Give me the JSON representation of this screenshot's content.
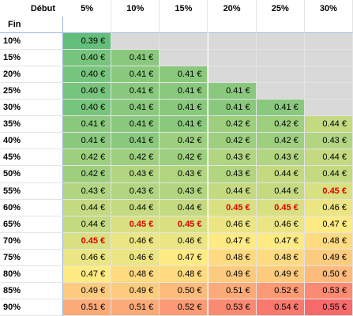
{
  "table": {
    "corner_top": "Début",
    "corner_left": "Fin",
    "highlight_text": "0.45 €",
    "columns": [
      "5%",
      "10%",
      "15%",
      "20%",
      "25%",
      "30%"
    ],
    "row_labels": [
      "10%",
      "15%",
      "20%",
      "25%",
      "30%",
      "35%",
      "40%",
      "45%",
      "50%",
      "55%",
      "60%",
      "65%",
      "70%",
      "75%",
      "80%",
      "85%",
      "90%"
    ],
    "rows": [
      [
        "0.39 €",
        null,
        null,
        null,
        null,
        null
      ],
      [
        "0.40 €",
        "0.41 €",
        null,
        null,
        null,
        null
      ],
      [
        "0.40 €",
        "0.41 €",
        "0.41 €",
        null,
        null,
        null
      ],
      [
        "0.40 €",
        "0.41 €",
        "0.41 €",
        "0.41 €",
        null,
        null
      ],
      [
        "0.40 €",
        "0.41 €",
        "0.41 €",
        "0.41 €",
        "0.41 €",
        null
      ],
      [
        "0.41 €",
        "0.41 €",
        "0.41 €",
        "0.42 €",
        "0.42 €",
        "0.44 €"
      ],
      [
        "0.41 €",
        "0.41 €",
        "0.42 €",
        "0.42 €",
        "0.42 €",
        "0.43 €"
      ],
      [
        "0.42 €",
        "0.42 €",
        "0.42 €",
        "0.43 €",
        "0.43 €",
        "0.44 €"
      ],
      [
        "0.42 €",
        "0.43 €",
        "0.43 €",
        "0.43 €",
        "0.44 €",
        "0.44 €"
      ],
      [
        "0.43 €",
        "0.43 €",
        "0.43 €",
        "0.44 €",
        "0.44 €",
        "0.45 €"
      ],
      [
        "0.44 €",
        "0.44 €",
        "0.44 €",
        "0.45 €",
        "0.45 €",
        "0.46 €"
      ],
      [
        "0.44 €",
        "0.45 €",
        "0.45 €",
        "0.46 €",
        "0.46 €",
        "0.47 €"
      ],
      [
        "0.45 €",
        "0.46 €",
        "0.46 €",
        "0.47 €",
        "0.47 €",
        "0.48 €"
      ],
      [
        "0.46 €",
        "0.46 €",
        "0.47 €",
        "0.48 €",
        "0.48 €",
        "0.49 €"
      ],
      [
        "0.47 €",
        "0.48 €",
        "0.48 €",
        "0.49 €",
        "0.49 €",
        "0.50 €"
      ],
      [
        "0.49 €",
        "0.49 €",
        "0.50 €",
        "0.51 €",
        "0.52 €",
        "0.53 €"
      ],
      [
        "0.51 €",
        "0.51 €",
        "0.52 €",
        "0.53 €",
        "0.54 €",
        "0.55 €"
      ]
    ]
  }
}
